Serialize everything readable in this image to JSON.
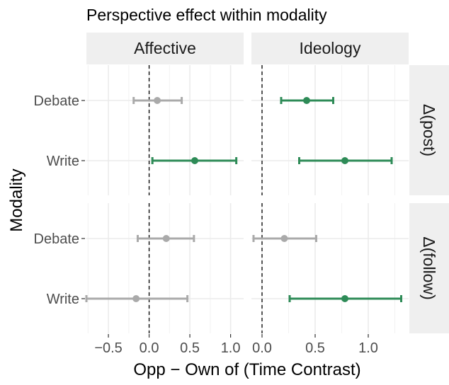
{
  "chart_data": {
    "type": "errorbar",
    "title": "Perspective effect within modality",
    "xlabel": "Opp − Own of (Time Contrast)",
    "ylabel": "Modality",
    "columns": [
      "Affective",
      "Ideology"
    ],
    "rows": [
      "Δ(post)",
      "Δ(follow)"
    ],
    "categories": [
      "Debate",
      "Write"
    ],
    "x_ticks": {
      "Affective": [
        "−0.5",
        "0.0",
        "0.5",
        "1.0"
      ],
      "Ideology": [
        "0.0",
        "0.5",
        "1.0"
      ]
    },
    "xlim": {
      "Affective": [
        -0.77,
        1.16
      ],
      "Ideology": [
        -0.1,
        1.38
      ]
    },
    "reference_line": 0,
    "grid": true,
    "legend": "none",
    "colors": {
      "significant": "#2e8b57",
      "not_significant": "#aaaaaa"
    },
    "panels": [
      {
        "column": "Affective",
        "row": "Δ(post)",
        "points": [
          {
            "category": "Debate",
            "estimate": 0.1,
            "low": -0.19,
            "high": 0.4,
            "significant": false
          },
          {
            "category": "Write",
            "estimate": 0.56,
            "low": 0.04,
            "high": 1.07,
            "significant": true
          }
        ]
      },
      {
        "column": "Ideology",
        "row": "Δ(post)",
        "points": [
          {
            "category": "Debate",
            "estimate": 0.42,
            "low": 0.18,
            "high": 0.67,
            "significant": true
          },
          {
            "category": "Write",
            "estimate": 0.78,
            "low": 0.35,
            "high": 1.22,
            "significant": true
          }
        ]
      },
      {
        "column": "Affective",
        "row": "Δ(follow)",
        "points": [
          {
            "category": "Debate",
            "estimate": 0.21,
            "low": -0.14,
            "high": 0.55,
            "significant": false
          },
          {
            "category": "Write",
            "estimate": -0.16,
            "low": -0.77,
            "high": 0.47,
            "significant": false
          }
        ]
      },
      {
        "column": "Ideology",
        "row": "Δ(follow)",
        "points": [
          {
            "category": "Debate",
            "estimate": 0.21,
            "low": -0.08,
            "high": 0.51,
            "significant": false
          },
          {
            "category": "Write",
            "estimate": 0.78,
            "low": 0.26,
            "high": 1.31,
            "significant": true
          }
        ]
      }
    ]
  }
}
